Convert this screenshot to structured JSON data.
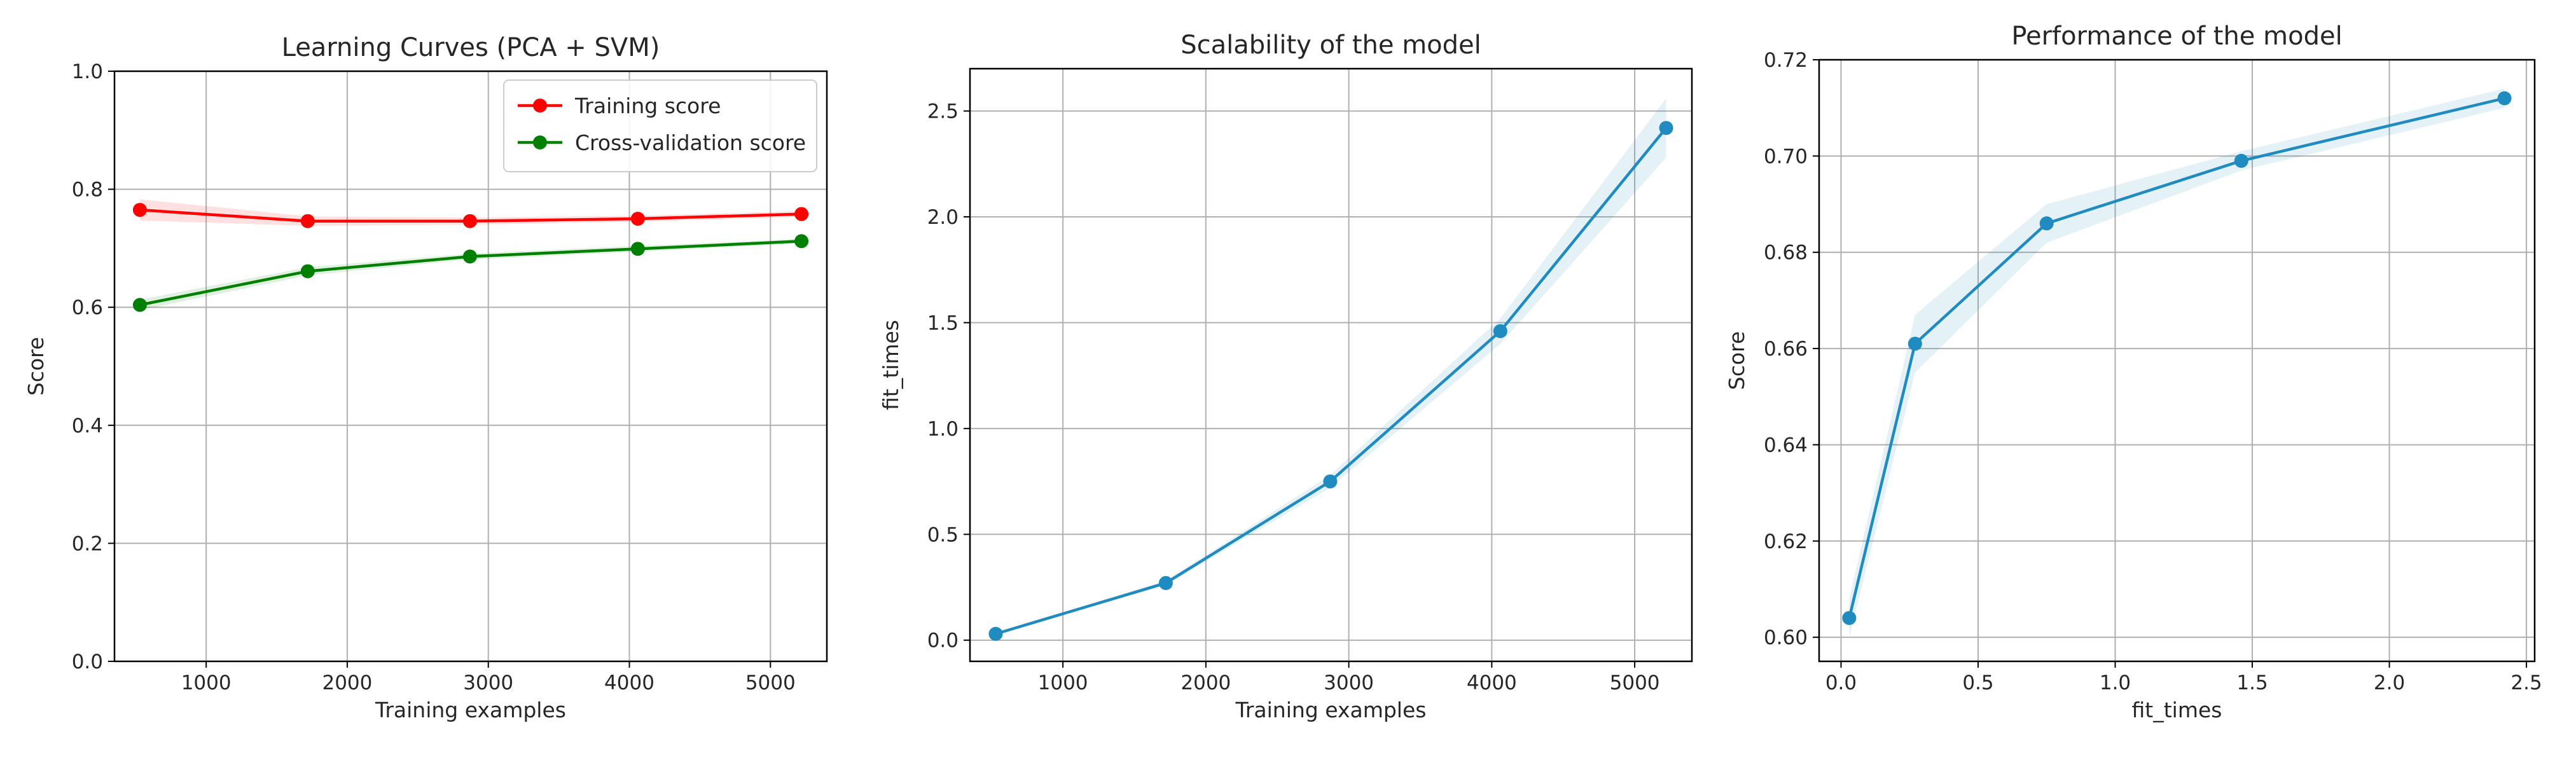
{
  "chart_data": [
    {
      "type": "line",
      "title": "Learning Curves (PCA + SVM)",
      "xlabel": "Training examples",
      "ylabel": "Score",
      "xlim": [
        350,
        5400
      ],
      "ylim": [
        0.0,
        1.0
      ],
      "xticks": [
        1000,
        2000,
        3000,
        4000,
        5000
      ],
      "yticks": [
        0.0,
        0.2,
        0.4,
        0.6,
        0.8,
        1.0
      ],
      "grid": true,
      "legend_position": "top-right",
      "x": [
        530,
        1720,
        2870,
        4060,
        5220
      ],
      "series": [
        {
          "name": "Training score",
          "color": "#ff0000",
          "values": [
            0.765,
            0.746,
            0.746,
            0.75,
            0.758
          ],
          "band": [
            0.018,
            0.008,
            0.006,
            0.005,
            0.005
          ]
        },
        {
          "name": "Cross-validation score",
          "color": "#008000",
          "values": [
            0.604,
            0.661,
            0.686,
            0.699,
            0.712
          ],
          "band": [
            0.009,
            0.007,
            0.005,
            0.005,
            0.004
          ]
        }
      ]
    },
    {
      "type": "line",
      "title": "Scalability of the model",
      "xlabel": "Training examples",
      "ylabel": "fit_times",
      "xlim": [
        350,
        5400
      ],
      "ylim": [
        -0.1,
        2.7
      ],
      "xticks": [
        1000,
        2000,
        3000,
        4000,
        5000
      ],
      "yticks": [
        0.0,
        0.5,
        1.0,
        1.5,
        2.0,
        2.5
      ],
      "grid": true,
      "x": [
        530,
        1720,
        2870,
        4060,
        5220
      ],
      "series": [
        {
          "color": "#1f8bc0",
          "values": [
            0.03,
            0.27,
            0.75,
            1.46,
            2.42
          ],
          "band": [
            0.005,
            0.01,
            0.03,
            0.06,
            0.14
          ]
        }
      ]
    },
    {
      "type": "line",
      "title": "Performance of the model",
      "xlabel": "fit_times",
      "ylabel": "Score",
      "xlim": [
        -0.08,
        2.53
      ],
      "ylim": [
        0.595,
        0.72
      ],
      "xticks": [
        0.0,
        0.5,
        1.0,
        1.5,
        2.0,
        2.5
      ],
      "yticks": [
        0.6,
        0.62,
        0.64,
        0.66,
        0.68,
        0.7,
        0.72
      ],
      "grid": true,
      "x": [
        0.03,
        0.27,
        0.75,
        1.46,
        2.42
      ],
      "series": [
        {
          "color": "#1f8bc0",
          "values": [
            0.604,
            0.661,
            0.686,
            0.699,
            0.712
          ],
          "band": [
            0.004,
            0.006,
            0.004,
            0.002,
            0.002
          ]
        }
      ]
    }
  ]
}
